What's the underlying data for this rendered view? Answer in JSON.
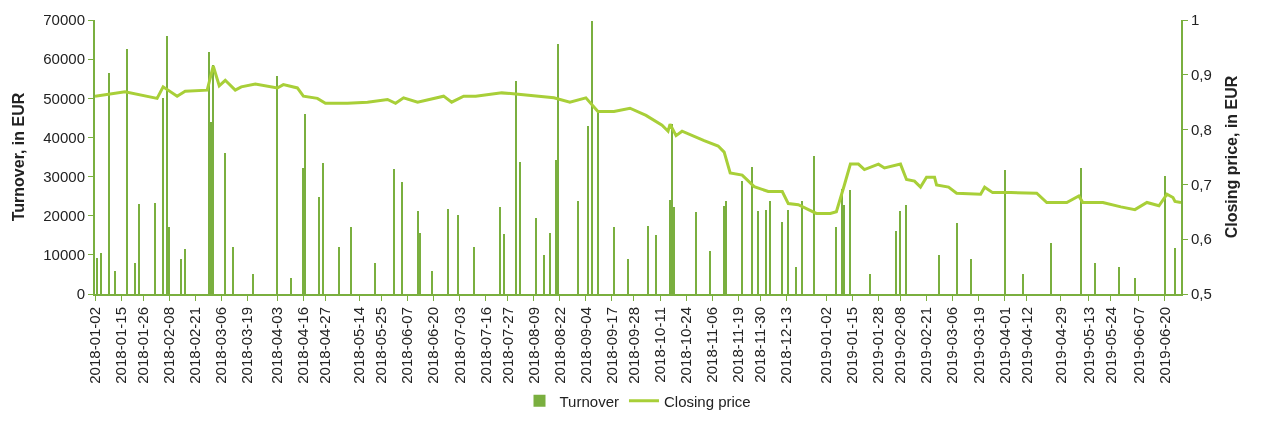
{
  "chart_data": {
    "type": "bar",
    "ylabel": "Turnover, in EUR",
    "y2label": "Closing price, in EUR",
    "legend": "bottom",
    "xlim": [
      "2018-01-02",
      "2019-06-28"
    ],
    "xticks": [
      {
        "value": "2018-01-02",
        "label": "2018-01-02"
      },
      {
        "value": "2018-01-15",
        "label": "2018-01-15"
      },
      {
        "value": "2018-01-26",
        "label": "2018-01-26"
      },
      {
        "value": "2018-02-08",
        "label": "2018-02-08"
      },
      {
        "value": "2018-02-21",
        "label": "2018-02-21"
      },
      {
        "value": "2018-03-06",
        "label": "2018-03-06"
      },
      {
        "value": "2018-03-19",
        "label": "2018-03-19"
      },
      {
        "value": "2018-04-03",
        "label": "2018-04-03"
      },
      {
        "value": "2018-04-16",
        "label": "2018-04-16"
      },
      {
        "value": "2018-04-27",
        "label": "2018-04-27"
      },
      {
        "value": "2018-05-14",
        "label": "2018-05-14"
      },
      {
        "value": "2018-05-25",
        "label": "2018-05-25"
      },
      {
        "value": "2018-06-07",
        "label": "2018-06-07"
      },
      {
        "value": "2018-06-20",
        "label": "2018-06-20"
      },
      {
        "value": "2018-07-03",
        "label": "2018-07-03"
      },
      {
        "value": "2018-07-16",
        "label": "2018-07-16"
      },
      {
        "value": "2018-07-27",
        "label": "2018-07-27"
      },
      {
        "value": "2018-08-09",
        "label": "2018-08-09"
      },
      {
        "value": "2018-08-22",
        "label": "2018-08-22"
      },
      {
        "value": "2018-09-04",
        "label": "2018-09-04"
      },
      {
        "value": "2018-09-17",
        "label": "2018-09-17"
      },
      {
        "value": "2018-09-28",
        "label": "2018-09-28"
      },
      {
        "value": "2018-10-11",
        "label": "2018-10-11"
      },
      {
        "value": "2018-10-24",
        "label": "2018-10-24"
      },
      {
        "value": "2018-11-06",
        "label": "2018-11-06"
      },
      {
        "value": "2018-11-19",
        "label": "2018-11-19"
      },
      {
        "value": "2018-11-30",
        "label": "2018-11-30"
      },
      {
        "value": "2018-12-13",
        "label": "2018-12-13"
      },
      {
        "value": "2019-01-02",
        "label": "2019-01-02"
      },
      {
        "value": "2019-01-15",
        "label": "2019-01-15"
      },
      {
        "value": "2019-01-28",
        "label": "2019-01-28"
      },
      {
        "value": "2019-02-08",
        "label": "2019-02-08"
      },
      {
        "value": "2019-02-21",
        "label": "2019-02-21"
      },
      {
        "value": "2019-03-06",
        "label": "2019-03-06"
      },
      {
        "value": "2019-03-19",
        "label": "2019-03-19"
      },
      {
        "value": "2019-04-01",
        "label": "2019-04-01"
      },
      {
        "value": "2019-04-12",
        "label": "2019-04-12"
      },
      {
        "value": "2019-04-29",
        "label": "2019-04-29"
      },
      {
        "value": "2019-05-13",
        "label": "2019-05-13"
      },
      {
        "value": "2019-05-24",
        "label": "2019-05-24"
      },
      {
        "value": "2019-06-07",
        "label": "2019-06-07"
      },
      {
        "value": "2019-06-20",
        "label": "2019-06-20"
      }
    ],
    "ylim": [
      0,
      70000
    ],
    "yticks": [
      0,
      10000,
      20000,
      30000,
      40000,
      50000,
      60000,
      70000
    ],
    "y2lim": [
      0.5,
      1
    ],
    "y2ticks": [
      {
        "value": 0.5,
        "label": "0,5"
      },
      {
        "value": 0.6,
        "label": "0,6"
      },
      {
        "value": 0.7,
        "label": "0,7"
      },
      {
        "value": 0.8,
        "label": "0,8"
      },
      {
        "value": 0.9,
        "label": "0,9"
      },
      {
        "value": 1,
        "label": "1"
      }
    ],
    "series": [
      {
        "name": "Turnover",
        "color": "#7aaf3f",
        "x": [
          "2018-01-03",
          "2018-01-05",
          "2018-01-09",
          "2018-01-12",
          "2018-01-18",
          "2018-01-22",
          "2018-01-24",
          "2018-02-01",
          "2018-02-05",
          "2018-02-07",
          "2018-02-08",
          "2018-02-14",
          "2018-02-16",
          "2018-02-28",
          "2018-03-01",
          "2018-03-02",
          "2018-03-08",
          "2018-03-12",
          "2018-03-22",
          "2018-04-03",
          "2018-04-10",
          "2018-04-16",
          "2018-04-17",
          "2018-04-24",
          "2018-04-26",
          "2018-05-04",
          "2018-05-10",
          "2018-05-22",
          "2018-05-31",
          "2018-06-04",
          "2018-06-12",
          "2018-06-13",
          "2018-06-19",
          "2018-06-27",
          "2018-07-02",
          "2018-07-10",
          "2018-07-23",
          "2018-07-25",
          "2018-07-31",
          "2018-08-02",
          "2018-08-10",
          "2018-08-14",
          "2018-08-17",
          "2018-08-20",
          "2018-08-21",
          "2018-08-31",
          "2018-09-05",
          "2018-09-07",
          "2018-09-10",
          "2018-09-18",
          "2018-09-25",
          "2018-10-05",
          "2018-10-09",
          "2018-10-16",
          "2018-10-17",
          "2018-10-18",
          "2018-10-29",
          "2018-11-05",
          "2018-11-12",
          "2018-11-13",
          "2018-11-21",
          "2018-11-26",
          "2018-11-29",
          "2018-12-03",
          "2018-12-05",
          "2018-12-11",
          "2018-12-14",
          "2018-12-18",
          "2018-12-21",
          "2018-12-27",
          "2019-01-07",
          "2019-01-10",
          "2019-01-11",
          "2019-01-14",
          "2019-01-24",
          "2019-02-06",
          "2019-02-08",
          "2019-02-11",
          "2019-02-27",
          "2019-03-08",
          "2019-03-15",
          "2019-04-01",
          "2019-04-10",
          "2019-04-24",
          "2019-05-09",
          "2019-05-16",
          "2019-05-28",
          "2019-06-05",
          "2019-06-20",
          "2019-06-25"
        ],
        "values": [
          9200,
          10500,
          56400,
          6000,
          62600,
          8000,
          23000,
          23200,
          50000,
          65900,
          17100,
          9000,
          11500,
          61700,
          44000,
          58500,
          36000,
          12000,
          5000,
          55800,
          4000,
          32200,
          46100,
          24800,
          33400,
          12000,
          17000,
          8000,
          31900,
          28700,
          21300,
          15500,
          6000,
          21800,
          20100,
          12000,
          22200,
          15400,
          54400,
          33700,
          19300,
          10000,
          15600,
          34300,
          63800,
          23800,
          42800,
          69700,
          46400,
          17000,
          9000,
          17500,
          15000,
          24000,
          43400,
          22200,
          20900,
          11000,
          22400,
          23800,
          28900,
          32500,
          21300,
          21500,
          23800,
          18300,
          21500,
          7000,
          23800,
          35200,
          17200,
          26900,
          22700,
          26500,
          5000,
          16100,
          21200,
          22700,
          10000,
          18200,
          9000,
          31600,
          5000,
          13000,
          32200,
          8000,
          7000,
          4000,
          30100,
          11800
        ]
      },
      {
        "name": "Closing price",
        "type": "line",
        "axis": "y2",
        "color": "#a8cf38",
        "line_style": "solid",
        "marker": "none",
        "x": [
          "2018-01-02",
          "2018-01-17",
          "2018-02-02",
          "2018-02-05",
          "2018-02-12",
          "2018-02-16",
          "2018-02-27",
          "2018-03-02",
          "2018-03-05",
          "2018-03-08",
          "2018-03-13",
          "2018-03-16",
          "2018-03-23",
          "2018-04-03",
          "2018-04-06",
          "2018-04-13",
          "2018-04-16",
          "2018-04-23",
          "2018-04-27",
          "2018-05-08",
          "2018-05-18",
          "2018-05-28",
          "2018-06-01",
          "2018-06-05",
          "2018-06-12",
          "2018-06-25",
          "2018-06-29",
          "2018-07-05",
          "2018-07-11",
          "2018-07-24",
          "2018-07-31",
          "2018-08-19",
          "2018-08-27",
          "2018-09-04",
          "2018-09-10",
          "2018-09-18",
          "2018-09-26",
          "2018-10-04",
          "2018-10-12",
          "2018-10-15",
          "2018-10-16",
          "2018-10-19",
          "2018-10-22",
          "2018-11-02",
          "2018-11-09",
          "2018-11-12",
          "2018-11-15",
          "2018-11-21",
          "2018-11-27",
          "2018-12-04",
          "2018-12-11",
          "2018-12-14",
          "2018-12-19",
          "2018-12-28",
          "2019-01-04",
          "2019-01-07",
          "2019-01-11",
          "2019-01-14",
          "2019-01-18",
          "2019-01-21",
          "2019-01-28",
          "2019-01-31",
          "2019-02-08",
          "2019-02-11",
          "2019-02-15",
          "2019-02-18",
          "2019-02-21",
          "2019-02-25",
          "2019-02-26",
          "2019-03-04",
          "2019-03-08",
          "2019-03-20",
          "2019-03-22",
          "2019-03-26",
          "2019-04-04",
          "2019-04-17",
          "2019-04-22",
          "2019-05-02",
          "2019-05-08",
          "2019-05-10",
          "2019-05-20",
          "2019-05-29",
          "2019-06-05",
          "2019-06-11",
          "2019-06-17",
          "2019-06-21",
          "2019-06-24",
          "2019-06-25",
          "2019-06-28"
        ],
        "values": [
          0.861,
          0.869,
          0.857,
          0.878,
          0.861,
          0.87,
          0.872,
          0.916,
          0.88,
          0.89,
          0.872,
          0.878,
          0.883,
          0.876,
          0.882,
          0.876,
          0.861,
          0.857,
          0.848,
          0.848,
          0.85,
          0.855,
          0.848,
          0.858,
          0.85,
          0.861,
          0.85,
          0.861,
          0.861,
          0.867,
          0.865,
          0.858,
          0.85,
          0.858,
          0.833,
          0.833,
          0.839,
          0.826,
          0.808,
          0.797,
          0.81,
          0.789,
          0.797,
          0.78,
          0.77,
          0.759,
          0.721,
          0.717,
          0.696,
          0.687,
          0.687,
          0.665,
          0.663,
          0.647,
          0.647,
          0.65,
          0.699,
          0.737,
          0.737,
          0.727,
          0.737,
          0.73,
          0.737,
          0.709,
          0.706,
          0.695,
          0.713,
          0.713,
          0.699,
          0.695,
          0.684,
          0.682,
          0.695,
          0.685,
          0.685,
          0.684,
          0.667,
          0.667,
          0.679,
          0.667,
          0.667,
          0.659,
          0.654,
          0.667,
          0.661,
          0.682,
          0.676,
          0.669,
          0.667
        ]
      }
    ]
  }
}
